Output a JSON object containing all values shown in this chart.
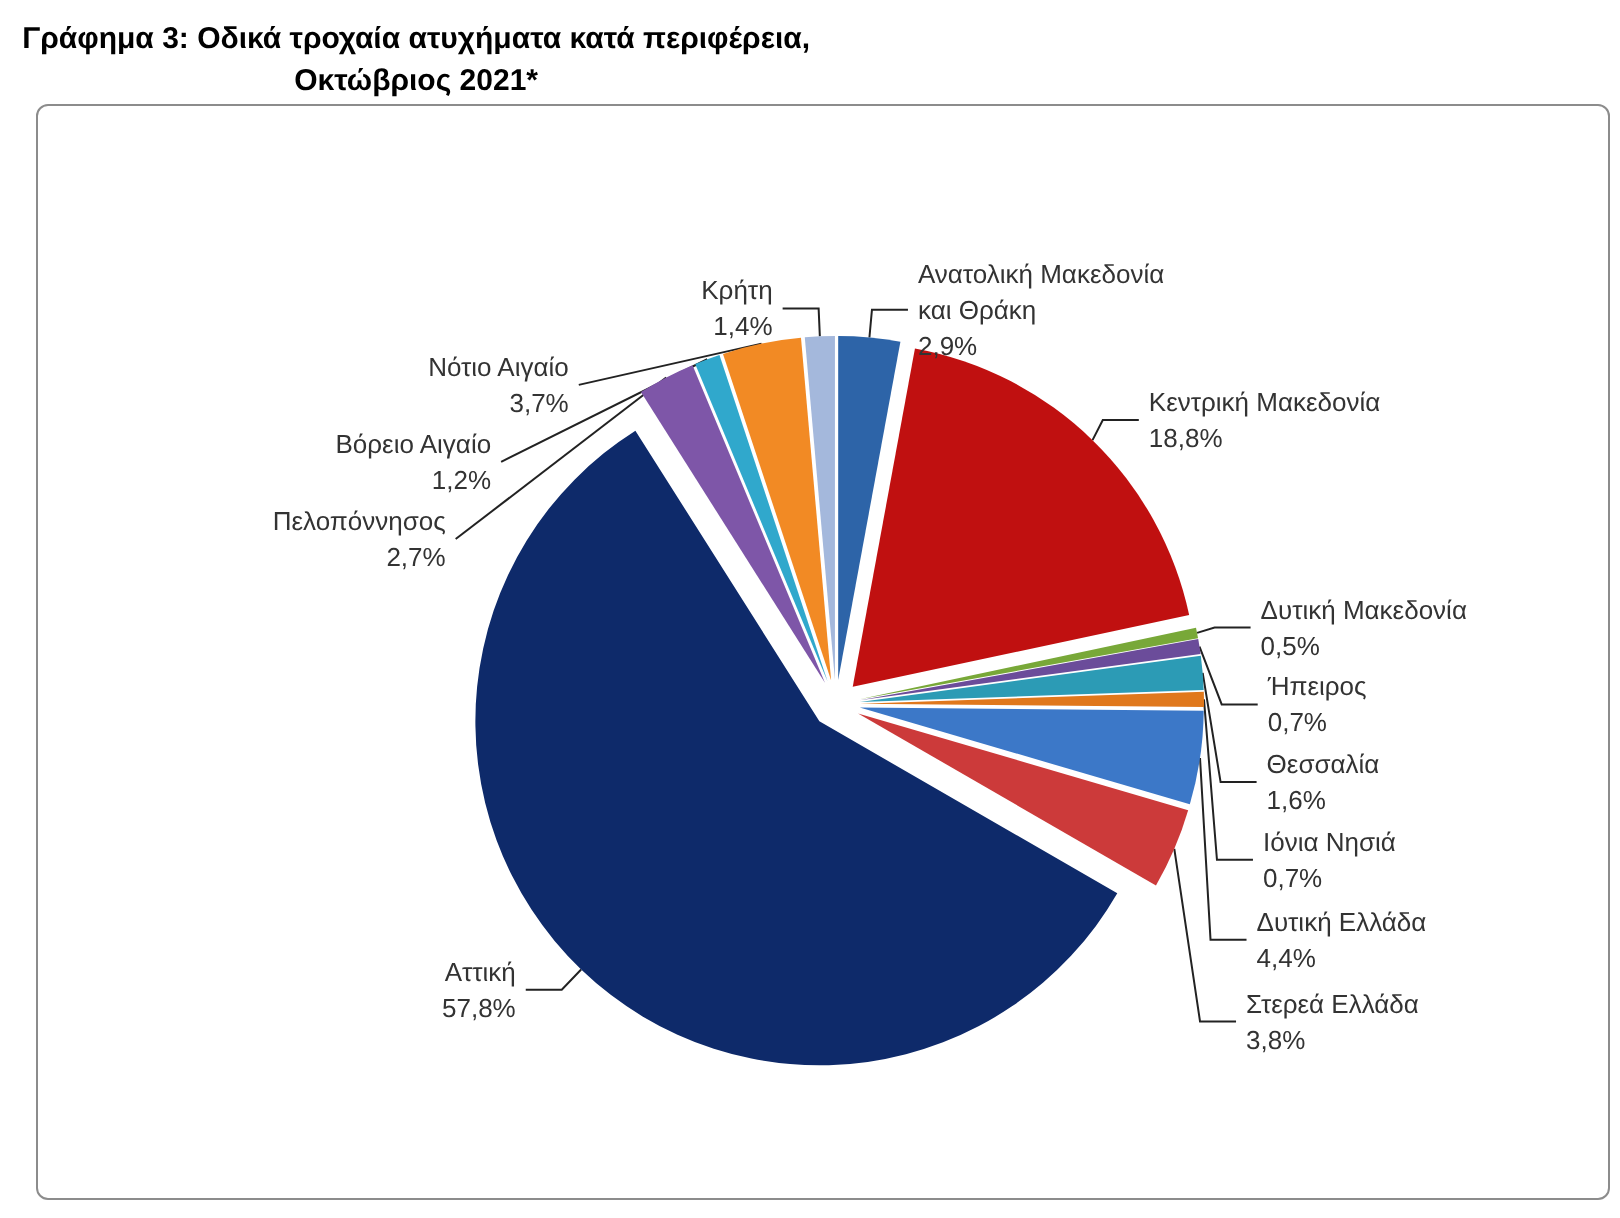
{
  "chart_data": {
    "type": "pie",
    "title": "Γράφημα 3: Οδικά τροχαία ατυχήματα κατά περιφέρεια, Οκτώβριος 2021*",
    "categories": [
      "Ανατολική Μακεδονία και Θράκη",
      "Κεντρική Μακεδονία",
      "Δυτική Μακεδονία",
      "Ήπειρος",
      "Θεσσαλία",
      "Ιόνια Νησιά",
      "Δυτική Ελλάδα",
      "Στερεά Ελλάδα",
      "Αττική",
      "Πελοπόννησος",
      "Βόρειο Αιγαίο",
      "Νότιο Αιγαίο",
      "Κρήτη"
    ],
    "values": [
      2.9,
      18.8,
      0.5,
      0.7,
      1.6,
      0.7,
      4.4,
      3.8,
      57.8,
      2.7,
      1.2,
      3.7,
      1.4
    ],
    "value_labels": [
      "2,9%",
      "18,8%",
      "0,5%",
      "0,7%",
      "1,6%",
      "0,7%",
      "4,4%",
      "3,8%",
      "57,8%",
      "2,7%",
      "1,2%",
      "3,7%",
      "1,4%"
    ],
    "colors": [
      "#2d64a8",
      "#c01010",
      "#78a838",
      "#6b4c9a",
      "#2c9bb5",
      "#e0781c",
      "#3c78c8",
      "#cc3a3a",
      "#0e2a6a",
      "#7e56a8",
      "#30a8cc",
      "#f28a24",
      "#a4b8dc"
    ]
  }
}
